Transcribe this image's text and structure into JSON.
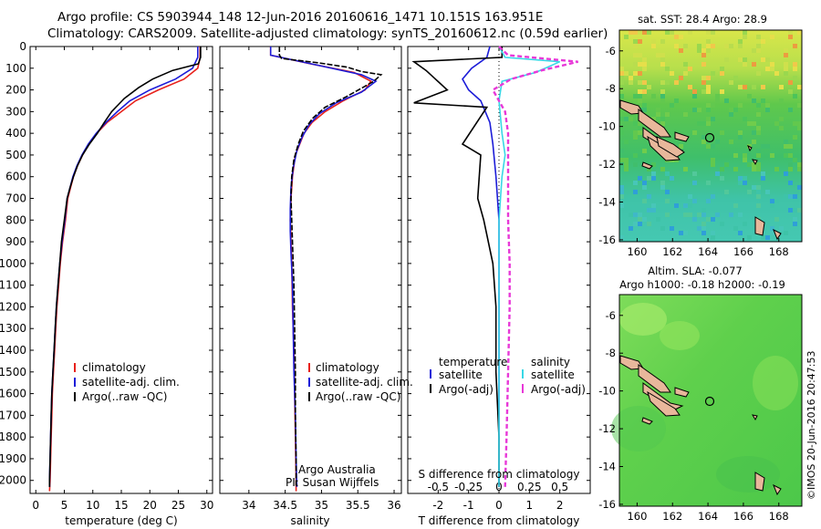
{
  "header": {
    "line1": "Argo profile: CS 5903944_148 12-Jun-2016 20160616_1471 10.151S 163.951E",
    "line2": "Climatology: CARS2009. Satellite-adjusted climatology: synTS_20160612.nc (0.59d earlier)"
  },
  "colors": {
    "climatology": "#e8221c",
    "satellite": "#1c1cd8",
    "argo": "#000000",
    "sat_salinity": "#38d8e6",
    "argo_salinity": "#e838d8"
  },
  "chart_data": [
    {
      "type": "line",
      "name": "temperature-profile",
      "xlabel": "temperature (deg C)",
      "ylabel": "",
      "xlim": [
        -1,
        31
      ],
      "ylim": [
        2060,
        0
      ],
      "xticks": [
        0,
        5,
        10,
        15,
        20,
        25,
        30
      ],
      "yticks": [
        0,
        100,
        200,
        300,
        400,
        500,
        600,
        700,
        800,
        900,
        1000,
        1100,
        1200,
        1300,
        1400,
        1500,
        1600,
        1700,
        1800,
        1900,
        2000
      ],
      "legend": [
        "climatology",
        "satellite-adj. clim.",
        "Argo(..raw -QC)"
      ],
      "series": [
        {
          "name": "climatology",
          "color": "#e8221c",
          "points": [
            [
              28.8,
              0
            ],
            [
              28.8,
              50
            ],
            [
              28.4,
              100
            ],
            [
              26,
              150
            ],
            [
              21.5,
              200
            ],
            [
              17.5,
              250
            ],
            [
              15,
              300
            ],
            [
              12.5,
              350
            ],
            [
              10.7,
              400
            ],
            [
              9.3,
              450
            ],
            [
              8.2,
              500
            ],
            [
              7.3,
              550
            ],
            [
              6.6,
              600
            ],
            [
              6.1,
              650
            ],
            [
              5.6,
              700
            ],
            [
              5.2,
              800
            ],
            [
              4.7,
              900
            ],
            [
              4.3,
              1000
            ],
            [
              4,
              1100
            ],
            [
              3.7,
              1200
            ],
            [
              3.5,
              1300
            ],
            [
              3.3,
              1400
            ],
            [
              3.1,
              1500
            ],
            [
              2.9,
              1600
            ],
            [
              2.8,
              1700
            ],
            [
              2.7,
              1800
            ],
            [
              2.6,
              1900
            ],
            [
              2.5,
              2000
            ],
            [
              2.4,
              2050
            ]
          ]
        },
        {
          "name": "satellite",
          "color": "#1c1cd8",
          "points": [
            [
              28.4,
              0
            ],
            [
              28.4,
              50
            ],
            [
              27.5,
              100
            ],
            [
              24.5,
              150
            ],
            [
              20,
              200
            ],
            [
              16.5,
              250
            ],
            [
              14.3,
              300
            ],
            [
              12.3,
              350
            ],
            [
              10.6,
              400
            ],
            [
              9.2,
              450
            ],
            [
              8.1,
              500
            ],
            [
              7.2,
              550
            ],
            [
              6.5,
              600
            ],
            [
              6,
              650
            ],
            [
              5.5,
              700
            ],
            [
              5.1,
              800
            ],
            [
              4.6,
              900
            ],
            [
              4.2,
              1000
            ],
            [
              3.9,
              1100
            ],
            [
              3.6,
              1200
            ],
            [
              3.4,
              1300
            ],
            [
              3.2,
              1400
            ],
            [
              3,
              1500
            ],
            [
              2.8,
              1600
            ],
            [
              2.7,
              1700
            ],
            [
              2.6,
              1800
            ],
            [
              2.5,
              1900
            ],
            [
              2.4,
              2000
            ],
            [
              2.4,
              2030
            ]
          ]
        },
        {
          "name": "argo",
          "color": "#000000",
          "points": [
            [
              28.9,
              0
            ],
            [
              28.9,
              50
            ],
            [
              28.5,
              80
            ],
            [
              24,
              110
            ],
            [
              20.5,
              150
            ],
            [
              18,
              190
            ],
            [
              15.5,
              240
            ],
            [
              13.3,
              300
            ],
            [
              12,
              350
            ],
            [
              10.8,
              400
            ],
            [
              9.4,
              450
            ],
            [
              8.2,
              500
            ],
            [
              7.3,
              550
            ],
            [
              6.6,
              600
            ],
            [
              6,
              650
            ],
            [
              5.5,
              700
            ],
            [
              5,
              800
            ],
            [
              4.5,
              900
            ],
            [
              4.2,
              1000
            ],
            [
              3.9,
              1100
            ],
            [
              3.6,
              1200
            ],
            [
              3.4,
              1300
            ],
            [
              3.2,
              1400
            ],
            [
              3,
              1500
            ],
            [
              2.8,
              1600
            ],
            [
              2.7,
              1700
            ],
            [
              2.6,
              1800
            ],
            [
              2.5,
              1900
            ],
            [
              2.4,
              2000
            ],
            [
              2.4,
              2030
            ]
          ]
        }
      ]
    },
    {
      "type": "line",
      "name": "salinity-profile",
      "xlabel": "salinity",
      "xlim": [
        33.6,
        36.1
      ],
      "ylim": [
        2060,
        0
      ],
      "xticks": [
        34,
        34.5,
        35,
        35.5,
        36
      ],
      "legend": [
        "climatology",
        "satellite-adj. clim.",
        "Argo(..raw -QC)"
      ],
      "annotation": [
        "Argo Australia",
        "PI: Susan Wijffels"
      ],
      "series": [
        {
          "name": "climatology",
          "color": "#e8221c",
          "points": [
            [
              34.3,
              0
            ],
            [
              34.3,
              40
            ],
            [
              34.85,
              80
            ],
            [
              35.45,
              120
            ],
            [
              35.68,
              160
            ],
            [
              35.6,
              200
            ],
            [
              35.3,
              250
            ],
            [
              35.05,
              300
            ],
            [
              34.87,
              350
            ],
            [
              34.76,
              400
            ],
            [
              34.7,
              450
            ],
            [
              34.64,
              500
            ],
            [
              34.6,
              600
            ],
            [
              34.58,
              700
            ],
            [
              34.57,
              800
            ],
            [
              34.58,
              900
            ],
            [
              34.59,
              1000
            ],
            [
              34.6,
              1200
            ],
            [
              34.62,
              1400
            ],
            [
              34.63,
              1600
            ],
            [
              34.64,
              1800
            ],
            [
              34.65,
              2000
            ],
            [
              34.65,
              2050
            ]
          ]
        },
        {
          "name": "satellite",
          "color": "#1c1cd8",
          "points": [
            [
              34.3,
              0
            ],
            [
              34.3,
              40
            ],
            [
              35,
              90
            ],
            [
              35.55,
              130
            ],
            [
              35.75,
              160
            ],
            [
              35.55,
              210
            ],
            [
              35.2,
              260
            ],
            [
              34.97,
              310
            ],
            [
              34.83,
              360
            ],
            [
              34.73,
              420
            ],
            [
              34.66,
              480
            ],
            [
              34.61,
              560
            ],
            [
              34.58,
              650
            ],
            [
              34.57,
              750
            ],
            [
              34.57,
              850
            ],
            [
              34.58,
              950
            ],
            [
              34.6,
              1100
            ],
            [
              34.61,
              1300
            ],
            [
              34.62,
              1500
            ],
            [
              34.64,
              1700
            ],
            [
              34.65,
              1900
            ],
            [
              34.66,
              2030
            ]
          ]
        },
        {
          "name": "argo",
          "color": "#000000",
          "points": [
            [
              34.42,
              0
            ],
            [
              34.42,
              40
            ],
            [
              34.45,
              55
            ],
            [
              34.95,
              75
            ],
            [
              35.35,
              95
            ],
            [
              35.55,
              115
            ],
            [
              35.82,
              130
            ],
            [
              35.72,
              160
            ],
            [
              35.35,
              230
            ],
            [
              35.05,
              280
            ],
            [
              34.88,
              330
            ],
            [
              34.75,
              390
            ],
            [
              34.68,
              450
            ],
            [
              34.62,
              520
            ],
            [
              34.59,
              600
            ],
            [
              34.58,
              700
            ],
            [
              34.59,
              800
            ],
            [
              34.6,
              900
            ],
            [
              34.61,
              1000
            ],
            [
              34.62,
              1100
            ],
            [
              34.63,
              1300
            ],
            [
              34.64,
              1500
            ],
            [
              34.64,
              1700
            ],
            [
              34.65,
              1900
            ],
            [
              34.65,
              2030
            ]
          ]
        }
      ]
    },
    {
      "type": "line",
      "name": "difference-profile",
      "xlabel": "T difference from climatology",
      "xlabel_top": "S difference from climatology",
      "xlim": [
        -3,
        3
      ],
      "ylim": [
        2060,
        0
      ],
      "xticks_T": [
        -2,
        -1,
        0,
        1,
        2
      ],
      "xticks_S": [
        "-0.5",
        "-0.25",
        "0",
        "0.25",
        "0.5"
      ],
      "legend_temperature": [
        "temperature",
        "satellite",
        "Argo(-adj)"
      ],
      "legend_salinity": [
        "salinity",
        "satellite",
        "Argo(-adj)"
      ],
      "series": [
        {
          "name": "temperature-satellite",
          "color": "#1c1cd8",
          "points": [
            [
              -0.3,
              0
            ],
            [
              -0.4,
              50
            ],
            [
              -0.9,
              100
            ],
            [
              -1.2,
              150
            ],
            [
              -1,
              200
            ],
            [
              -0.6,
              250
            ],
            [
              -0.3,
              350
            ],
            [
              -0.2,
              450
            ],
            [
              -0.1,
              600
            ],
            [
              0,
              800
            ],
            [
              0,
              2030
            ]
          ]
        },
        {
          "name": "temperature-argo",
          "color": "#000000",
          "points": [
            [
              0.1,
              0
            ],
            [
              0.1,
              50
            ],
            [
              -2.8,
              70
            ],
            [
              -2.4,
              110
            ],
            [
              -1.7,
              200
            ],
            [
              -2.8,
              260
            ],
            [
              -0.4,
              280
            ],
            [
              -1.2,
              450
            ],
            [
              -0.6,
              500
            ],
            [
              -0.7,
              700
            ],
            [
              -0.5,
              800
            ],
            [
              -0.2,
              1000
            ],
            [
              -0.1,
              1200
            ],
            [
              -0.1,
              1500
            ],
            [
              0,
              1800
            ],
            [
              0,
              2030
            ]
          ]
        },
        {
          "name": "salinity-satellite",
          "color": "#38d8e6",
          "points": [
            [
              0,
              0
            ],
            [
              0.2,
              50
            ],
            [
              2,
              70
            ],
            [
              1.2,
              120
            ],
            [
              0.1,
              160
            ],
            [
              0,
              250
            ],
            [
              0.1,
              400
            ],
            [
              0.2,
              500
            ],
            [
              0.1,
              600
            ],
            [
              0,
              800
            ],
            [
              0,
              2030
            ]
          ]
        },
        {
          "name": "salinity-argo",
          "color": "#e838d8",
          "points": [
            [
              0,
              0
            ],
            [
              0.3,
              40
            ],
            [
              2.6,
              70
            ],
            [
              1.4,
              110
            ],
            [
              0.4,
              150
            ],
            [
              -0.2,
              200
            ],
            [
              0.2,
              300
            ],
            [
              0.3,
              400
            ],
            [
              0.3,
              600
            ],
            [
              0.3,
              800
            ],
            [
              0.35,
              1000
            ],
            [
              0.35,
              1200
            ],
            [
              0.3,
              1500
            ],
            [
              0.25,
              1800
            ],
            [
              0.2,
              2030
            ]
          ]
        }
      ]
    }
  ],
  "maps": {
    "sst": {
      "title": "sat. SST: 28.4 Argo: 28.9"
    },
    "sla": {
      "title_line1": "Altim. SLA: -0.077",
      "title_line2": "Argo h1000: -0.18 h2000: -0.19"
    },
    "lon_ticks": [
      "160",
      "162",
      "164",
      "166",
      "168"
    ],
    "lat_ticks": [
      "-6",
      "-8",
      "-10",
      "-12",
      "-14",
      "-16"
    ],
    "argo_position": {
      "lon": 163.951,
      "lat": -10.151
    },
    "land_color": "#e8b79b"
  },
  "credit": "©IMOS 20-Jun-2016 20:47:53"
}
